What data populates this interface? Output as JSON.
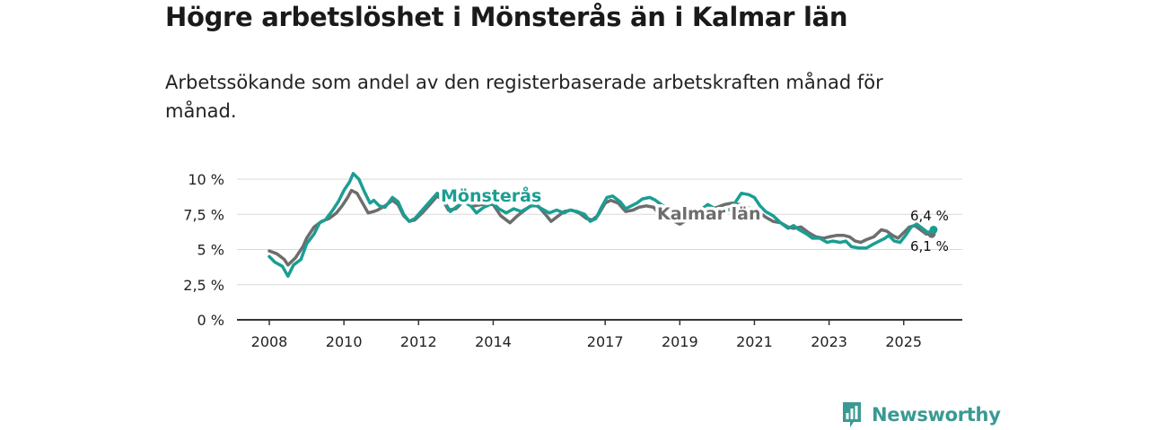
{
  "header": {
    "title": "Högre arbetslöshet i Mönsterås än i Kalmar län",
    "subtitle": "Arbetssökande som andel av den registerbaserade arbetskraften månad för månad."
  },
  "brand": {
    "name": "Newsworthy",
    "icon": "bar-chart-logo-icon",
    "color": "#3a9a93"
  },
  "chart_data": {
    "type": "line",
    "title": "Högre arbetslöshet i Mönsterås än i Kalmar län",
    "subtitle": "Arbetssökande som andel av den registerbaserade arbetskraften månad för månad.",
    "xlabel": "",
    "ylabel": "",
    "ylim": [
      0,
      10
    ],
    "xlim": [
      2008,
      2025.8
    ],
    "grid": true,
    "y_ticks": [
      {
        "value": 0,
        "label": "0 %"
      },
      {
        "value": 2.5,
        "label": "2,5 %"
      },
      {
        "value": 5,
        "label": "5 %"
      },
      {
        "value": 7.5,
        "label": "7,5 %"
      },
      {
        "value": 10,
        "label": "10 %"
      }
    ],
    "x_ticks": [
      {
        "value": 2008,
        "label": "2008"
      },
      {
        "value": 2010,
        "label": "2010"
      },
      {
        "value": 2012,
        "label": "2012"
      },
      {
        "value": 2014,
        "label": "2014"
      },
      {
        "value": 2017,
        "label": "2017"
      },
      {
        "value": 2019,
        "label": "2019"
      },
      {
        "value": 2021,
        "label": "2021"
      },
      {
        "value": 2023,
        "label": "2023"
      },
      {
        "value": 2025,
        "label": "2025"
      }
    ],
    "series": [
      {
        "name": "Kalmar län",
        "color": "#6d6d6d",
        "end_label": "6,1 %",
        "points": [
          [
            2008.0,
            4.9
          ],
          [
            2008.2,
            4.7
          ],
          [
            2008.4,
            4.3
          ],
          [
            2008.5,
            3.9
          ],
          [
            2008.7,
            4.4
          ],
          [
            2008.9,
            5.2
          ],
          [
            2009.0,
            5.8
          ],
          [
            2009.2,
            6.6
          ],
          [
            2009.4,
            7.0
          ],
          [
            2009.6,
            7.2
          ],
          [
            2009.8,
            7.6
          ],
          [
            2009.95,
            8.1
          ],
          [
            2010.1,
            8.7
          ],
          [
            2010.2,
            9.2
          ],
          [
            2010.35,
            9.0
          ],
          [
            2010.5,
            8.3
          ],
          [
            2010.65,
            7.6
          ],
          [
            2010.8,
            7.7
          ],
          [
            2010.9,
            7.8
          ],
          [
            2011.1,
            8.1
          ],
          [
            2011.3,
            8.5
          ],
          [
            2011.45,
            8.2
          ],
          [
            2011.6,
            7.4
          ],
          [
            2011.75,
            7.0
          ],
          [
            2011.9,
            7.1
          ],
          [
            2012.1,
            7.6
          ],
          [
            2012.3,
            8.2
          ],
          [
            2012.5,
            8.8
          ],
          [
            2012.65,
            8.5
          ],
          [
            2012.8,
            7.8
          ],
          [
            2013.0,
            7.9
          ],
          [
            2013.2,
            8.4
          ],
          [
            2013.5,
            8.1
          ],
          [
            2013.7,
            8.2
          ],
          [
            2014.0,
            8.2
          ],
          [
            2014.2,
            7.4
          ],
          [
            2014.45,
            6.9
          ],
          [
            2014.65,
            7.4
          ],
          [
            2014.85,
            7.8
          ],
          [
            2015.0,
            8.1
          ],
          [
            2015.2,
            8.1
          ],
          [
            2015.4,
            7.5
          ],
          [
            2015.55,
            7.0
          ],
          [
            2015.75,
            7.4
          ],
          [
            2015.9,
            7.7
          ],
          [
            2016.1,
            7.8
          ],
          [
            2016.3,
            7.6
          ],
          [
            2016.5,
            7.2
          ],
          [
            2016.65,
            7.1
          ],
          [
            2016.8,
            7.4
          ],
          [
            2017.0,
            8.3
          ],
          [
            2017.15,
            8.5
          ],
          [
            2017.35,
            8.3
          ],
          [
            2017.55,
            7.7
          ],
          [
            2017.75,
            7.8
          ],
          [
            2017.9,
            8.0
          ],
          [
            2018.1,
            8.1
          ],
          [
            2018.3,
            8.0
          ],
          [
            2018.45,
            7.5
          ],
          [
            2018.65,
            7.5
          ],
          [
            2018.85,
            7.0
          ],
          [
            2019.0,
            6.8
          ],
          [
            2019.2,
            7.1
          ],
          [
            2019.4,
            7.5
          ],
          [
            2019.6,
            7.6
          ],
          [
            2019.8,
            7.8
          ],
          [
            2020.0,
            8.0
          ],
          [
            2020.2,
            8.2
          ],
          [
            2020.4,
            8.3
          ],
          [
            2020.6,
            8.2
          ],
          [
            2020.8,
            8.0
          ],
          [
            2021.0,
            7.8
          ],
          [
            2021.15,
            7.6
          ],
          [
            2021.3,
            7.3
          ],
          [
            2021.5,
            7.0
          ],
          [
            2021.7,
            6.9
          ],
          [
            2021.9,
            6.6
          ],
          [
            2022.05,
            6.5
          ],
          [
            2022.25,
            6.6
          ],
          [
            2022.45,
            6.2
          ],
          [
            2022.65,
            5.9
          ],
          [
            2022.85,
            5.8
          ],
          [
            2023.0,
            5.9
          ],
          [
            2023.2,
            6.0
          ],
          [
            2023.4,
            6.0
          ],
          [
            2023.55,
            5.9
          ],
          [
            2023.7,
            5.6
          ],
          [
            2023.85,
            5.5
          ],
          [
            2024.0,
            5.7
          ],
          [
            2024.2,
            5.9
          ],
          [
            2024.4,
            6.4
          ],
          [
            2024.55,
            6.3
          ],
          [
            2024.7,
            6.0
          ],
          [
            2024.85,
            5.8
          ],
          [
            2025.0,
            6.2
          ],
          [
            2025.15,
            6.6
          ],
          [
            2025.3,
            6.7
          ],
          [
            2025.45,
            6.4
          ],
          [
            2025.6,
            6.1
          ],
          [
            2025.75,
            6.1
          ]
        ]
      },
      {
        "name": "Mönsterås",
        "color": "#1a9e93",
        "end_label": "6,4 %",
        "points": [
          [
            2008.0,
            4.5
          ],
          [
            2008.15,
            4.1
          ],
          [
            2008.35,
            3.8
          ],
          [
            2008.5,
            3.1
          ],
          [
            2008.65,
            3.9
          ],
          [
            2008.85,
            4.3
          ],
          [
            2009.0,
            5.4
          ],
          [
            2009.2,
            6.1
          ],
          [
            2009.35,
            6.9
          ],
          [
            2009.5,
            7.1
          ],
          [
            2009.7,
            7.8
          ],
          [
            2009.85,
            8.4
          ],
          [
            2010.0,
            9.2
          ],
          [
            2010.15,
            9.8
          ],
          [
            2010.25,
            10.4
          ],
          [
            2010.4,
            10.0
          ],
          [
            2010.55,
            9.1
          ],
          [
            2010.7,
            8.3
          ],
          [
            2010.8,
            8.5
          ],
          [
            2010.95,
            8.1
          ],
          [
            2011.1,
            8.0
          ],
          [
            2011.3,
            8.7
          ],
          [
            2011.45,
            8.4
          ],
          [
            2011.6,
            7.5
          ],
          [
            2011.75,
            7.0
          ],
          [
            2011.9,
            7.2
          ],
          [
            2012.1,
            7.8
          ],
          [
            2012.3,
            8.4
          ],
          [
            2012.5,
            9.0
          ],
          [
            2012.65,
            8.6
          ],
          [
            2012.85,
            7.7
          ],
          [
            2013.0,
            8.0
          ],
          [
            2013.2,
            8.4
          ],
          [
            2013.4,
            8.1
          ],
          [
            2013.55,
            7.6
          ],
          [
            2013.75,
            8.0
          ],
          [
            2014.0,
            8.3
          ],
          [
            2014.15,
            7.9
          ],
          [
            2014.35,
            7.6
          ],
          [
            2014.55,
            7.9
          ],
          [
            2014.75,
            7.7
          ],
          [
            2014.95,
            8.0
          ],
          [
            2015.1,
            8.2
          ],
          [
            2015.3,
            7.9
          ],
          [
            2015.5,
            7.6
          ],
          [
            2015.7,
            7.8
          ],
          [
            2015.9,
            7.6
          ],
          [
            2016.05,
            7.8
          ],
          [
            2016.25,
            7.7
          ],
          [
            2016.45,
            7.5
          ],
          [
            2016.6,
            7.0
          ],
          [
            2016.75,
            7.2
          ],
          [
            2016.9,
            8.0
          ],
          [
            2017.05,
            8.7
          ],
          [
            2017.2,
            8.8
          ],
          [
            2017.4,
            8.4
          ],
          [
            2017.55,
            7.9
          ],
          [
            2017.7,
            8.1
          ],
          [
            2017.85,
            8.3
          ],
          [
            2018.0,
            8.6
          ],
          [
            2018.2,
            8.7
          ],
          [
            2018.35,
            8.5
          ],
          [
            2018.5,
            8.2
          ],
          [
            2018.7,
            7.9
          ],
          [
            2018.85,
            7.8
          ],
          [
            2019.0,
            7.7
          ],
          [
            2019.25,
            7.8
          ],
          [
            2019.5,
            7.7
          ],
          [
            2019.75,
            8.2
          ],
          [
            2019.95,
            7.9
          ],
          [
            2020.15,
            7.9
          ],
          [
            2020.35,
            7.8
          ],
          [
            2020.5,
            8.4
          ],
          [
            2020.65,
            9.0
          ],
          [
            2020.85,
            8.9
          ],
          [
            2021.0,
            8.7
          ],
          [
            2021.15,
            8.1
          ],
          [
            2021.3,
            7.7
          ],
          [
            2021.5,
            7.4
          ],
          [
            2021.7,
            6.9
          ],
          [
            2021.9,
            6.5
          ],
          [
            2022.05,
            6.7
          ],
          [
            2022.2,
            6.4
          ],
          [
            2022.4,
            6.1
          ],
          [
            2022.55,
            5.8
          ],
          [
            2022.75,
            5.8
          ],
          [
            2022.95,
            5.5
          ],
          [
            2023.1,
            5.6
          ],
          [
            2023.3,
            5.5
          ],
          [
            2023.45,
            5.6
          ],
          [
            2023.6,
            5.2
          ],
          [
            2023.8,
            5.1
          ],
          [
            2024.0,
            5.1
          ],
          [
            2024.2,
            5.4
          ],
          [
            2024.35,
            5.6
          ],
          [
            2024.5,
            5.8
          ],
          [
            2024.6,
            6.0
          ],
          [
            2024.75,
            5.6
          ],
          [
            2024.9,
            5.5
          ],
          [
            2025.05,
            6.0
          ],
          [
            2025.2,
            6.6
          ],
          [
            2025.35,
            6.8
          ],
          [
            2025.5,
            6.5
          ],
          [
            2025.65,
            6.2
          ],
          [
            2025.8,
            6.4
          ]
        ]
      }
    ]
  }
}
